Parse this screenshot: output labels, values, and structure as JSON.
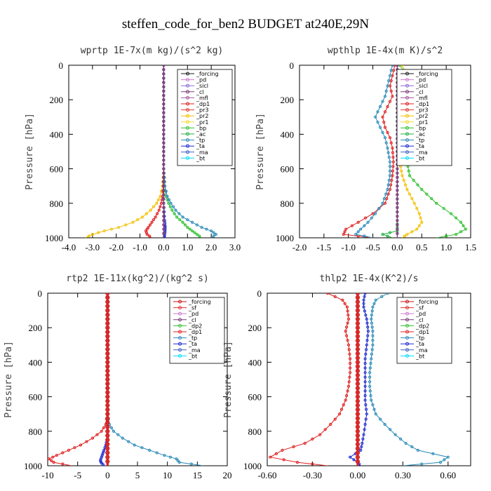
{
  "page": {
    "title": "steffen_code_for_ben2  BUDGET at240E,29N"
  },
  "colors": {
    "forcing": "#1a1a1a",
    "pd": "#d07ad0",
    "sicl": "#8a6ad8",
    "cl": "#7a3a7a",
    "mfl": "#a05a9a",
    "dp1": "#e02020",
    "pr3": "#e03a2a",
    "pr2": "#f3c000",
    "pr1": "#f3dc30",
    "bp": "#30c030",
    "ac": "#20b040",
    "tp": "#2a8ab8",
    "ta": "#1e2ad0",
    "ma": "#4060c0",
    "bt": "#00dcff",
    "sf": "#e03030",
    "dp2": "#30c030",
    "red_line": "#cc1111"
  },
  "chart_data": [
    {
      "type": "line",
      "title": "wprtp  1E-7x(m kg)/(s^2 kg)",
      "ylabel": "Pressure [hPa]",
      "xlim": [
        -4.0,
        3.0
      ],
      "ylim": [
        1000,
        0
      ],
      "xticks": [
        "-4.0",
        "-3.0",
        "-2.0",
        "-1.0",
        "0.0",
        "1.0",
        "2.0",
        "3.0"
      ],
      "yticks": [
        "0",
        "200",
        "400",
        "600",
        "800",
        "1000"
      ],
      "legend": [
        "_forcing",
        "_pd",
        "_sicl",
        "_cl",
        "_mfl",
        "_dp1",
        "_pr3",
        "_pr2",
        "_pr1",
        "_bp",
        "_ac",
        "_tp",
        "_ta",
        "_ma",
        "_bt"
      ],
      "series": [
        {
          "name": "_pr2",
          "color_key": "pr2",
          "x": [
            0,
            0,
            0,
            0,
            -0.05,
            -0.15,
            -0.3,
            -0.55,
            -0.9,
            -1.3,
            -1.9,
            -2.5,
            -3.0,
            -3.3
          ],
          "y": [
            0,
            300,
            500,
            600,
            700,
            760,
            800,
            840,
            880,
            910,
            940,
            960,
            980,
            1000
          ]
        },
        {
          "name": "_dp1",
          "color_key": "dp1",
          "x": [
            0,
            0,
            -0.02,
            -0.05,
            -0.1,
            -0.2,
            -0.35,
            -0.5,
            -0.65,
            -0.75,
            -0.7,
            -0.5
          ],
          "y": [
            0,
            600,
            700,
            760,
            800,
            840,
            880,
            910,
            940,
            960,
            980,
            1000
          ]
        },
        {
          "name": "_bp",
          "color_key": "bp",
          "x": [
            0,
            0,
            0.05,
            0.1,
            0.2,
            0.35,
            0.55,
            0.8,
            1.0,
            1.2,
            1.4,
            1.6
          ],
          "y": [
            0,
            600,
            700,
            760,
            800,
            840,
            880,
            910,
            940,
            960,
            980,
            1000
          ]
        },
        {
          "name": "_tp",
          "color_key": "tp",
          "x": [
            0,
            0,
            0.05,
            0.15,
            0.3,
            0.5,
            0.8,
            1.2,
            1.6,
            2.0,
            2.2,
            2.0
          ],
          "y": [
            0,
            600,
            700,
            760,
            800,
            840,
            880,
            910,
            940,
            960,
            980,
            1000
          ]
        },
        {
          "name": "_ta",
          "color_key": "ta",
          "x": [
            0,
            0,
            0,
            0.02,
            0.04,
            0.06,
            0.06,
            0.05,
            0.03,
            0.02
          ],
          "y": [
            0,
            700,
            800,
            850,
            900,
            930,
            950,
            970,
            990,
            1000
          ]
        },
        {
          "name": "_forcing",
          "color_key": "forcing",
          "x": [
            0,
            0
          ],
          "y": [
            0,
            1000
          ]
        },
        {
          "name": "_pd",
          "color_key": "pd",
          "x": [
            0,
            0
          ],
          "y": [
            0,
            1000
          ]
        },
        {
          "name": "_cl",
          "color_key": "cl",
          "x": [
            0,
            0
          ],
          "y": [
            0,
            1000
          ]
        }
      ]
    },
    {
      "type": "line",
      "title": "wpthlp  1E-4x(m K)/s^2",
      "ylabel": "Pressure [hPa]",
      "xlim": [
        -2.0,
        1.5
      ],
      "ylim": [
        1000,
        0
      ],
      "xticks": [
        "-2.0",
        "-1.5",
        "-1.0",
        "-0.5",
        "0.0",
        "0.5",
        "1.0",
        "1.5"
      ],
      "yticks": [
        "0",
        "200",
        "400",
        "600",
        "800",
        "1000"
      ],
      "legend": [
        "_forcing",
        "_pd",
        "_sicl",
        "_cl",
        "_mfl",
        "_dp1",
        "_pr3",
        "_pr2",
        "_pr1",
        "_bp",
        "_ac",
        "_tp",
        "_ta",
        "_ma",
        "_bt"
      ],
      "series": [
        {
          "name": "_bp",
          "color_key": "bp",
          "x": [
            0.05,
            0.2,
            0.3,
            0.25,
            0.3,
            0.45,
            0.5,
            0.45,
            0.3,
            0.2,
            0.25,
            0.5,
            0.8,
            1.1,
            1.3,
            1.4,
            1.2,
            0.8
          ],
          "y": [
            0,
            60,
            120,
            180,
            240,
            300,
            360,
            420,
            480,
            560,
            640,
            720,
            800,
            860,
            910,
            950,
            980,
            1000
          ]
        },
        {
          "name": "_pr2",
          "color_key": "pr2",
          "x": [
            0.1,
            0.2,
            0.25,
            0.2,
            0.3,
            0.35,
            0.3,
            0.2,
            0.1,
            0.05,
            0.1,
            0.2,
            0.35,
            0.45,
            0.5,
            0.4,
            0.2,
            0.1
          ],
          "y": [
            0,
            60,
            120,
            180,
            240,
            300,
            360,
            420,
            480,
            560,
            640,
            720,
            800,
            860,
            910,
            950,
            980,
            1000
          ]
        },
        {
          "name": "_dp1",
          "color_key": "dp1",
          "x": [
            -0.05,
            -0.1,
            -0.15,
            -0.1,
            -0.2,
            -0.3,
            -0.25,
            -0.15,
            -0.1,
            -0.08,
            -0.1,
            -0.15,
            -0.25,
            -0.5,
            -0.8,
            -1.05,
            -1.1,
            -0.5
          ],
          "y": [
            0,
            60,
            120,
            180,
            240,
            300,
            360,
            420,
            480,
            560,
            640,
            720,
            800,
            860,
            910,
            950,
            980,
            1000
          ]
        },
        {
          "name": "_tp",
          "color_key": "tp",
          "x": [
            -0.1,
            -0.15,
            -0.2,
            -0.25,
            -0.35,
            -0.45,
            -0.35,
            -0.25,
            -0.2,
            -0.15,
            -0.15,
            -0.2,
            -0.3,
            -0.45,
            -0.6,
            -0.75,
            -0.85,
            -0.5
          ],
          "y": [
            0,
            60,
            120,
            180,
            240,
            300,
            360,
            420,
            480,
            560,
            640,
            720,
            800,
            860,
            910,
            950,
            980,
            1000
          ]
        },
        {
          "name": "_ac",
          "color_key": "ac",
          "x": [
            0,
            0,
            0,
            0,
            0,
            0,
            0,
            0,
            -0.3,
            -0.1
          ],
          "y": [
            0,
            200,
            400,
            600,
            800,
            900,
            940,
            960,
            980,
            1000
          ]
        },
        {
          "name": "_forcing",
          "color_key": "forcing",
          "x": [
            0,
            0
          ],
          "y": [
            0,
            1000
          ]
        },
        {
          "name": "_pd",
          "color_key": "pd",
          "x": [
            0,
            0
          ],
          "y": [
            0,
            1000
          ]
        },
        {
          "name": "_cl",
          "color_key": "cl",
          "x": [
            0,
            0
          ],
          "y": [
            0,
            1000
          ]
        }
      ]
    },
    {
      "type": "line",
      "title": "rtp2  1E-11x(kg^2)/(kg^2 s)",
      "ylabel": "Pressure [hPa]",
      "xlim": [
        -10,
        20
      ],
      "ylim": [
        1000,
        0
      ],
      "xticks": [
        "-10",
        "-5",
        "0",
        "5",
        "10",
        "15",
        "20"
      ],
      "yticks": [
        "0",
        "200",
        "400",
        "600",
        "800",
        "1000"
      ],
      "legend": [
        "_forcing",
        "_sf",
        "_pd",
        "_cl",
        "_dp2",
        "_dp1",
        "_tp",
        "_ta",
        "_ma",
        "_bt"
      ],
      "series": [
        {
          "name": "_dp1",
          "color_key": "dp1",
          "x": [
            0,
            0,
            -0.3,
            -1.0,
            -2.5,
            -4.5,
            -6.5,
            -8.5,
            -9.8,
            -9.0,
            -6.0
          ],
          "y": [
            0,
            700,
            760,
            800,
            840,
            880,
            910,
            940,
            960,
            980,
            1000
          ]
        },
        {
          "name": "_tp",
          "color_key": "tp",
          "x": [
            0,
            0,
            0.3,
            1.0,
            2.5,
            4.5,
            7.0,
            9.5,
            11.5,
            12.0,
            16.0
          ],
          "y": [
            0,
            700,
            760,
            800,
            840,
            880,
            910,
            940,
            960,
            980,
            1000
          ]
        },
        {
          "name": "_ta",
          "color_key": "ta",
          "x": [
            0,
            0,
            -0.1,
            -0.3,
            -0.6,
            -0.8,
            -1.0,
            -1.2,
            -1.0,
            -0.5
          ],
          "y": [
            0,
            800,
            850,
            880,
            910,
            930,
            950,
            970,
            985,
            1000
          ]
        },
        {
          "name": "_forcing",
          "color_key": "red_line",
          "x": [
            0,
            0
          ],
          "y": [
            0,
            1000
          ]
        },
        {
          "name": "_sf",
          "color_key": "sf",
          "x": [
            0,
            0
          ],
          "y": [
            0,
            1000
          ]
        }
      ]
    },
    {
      "type": "line",
      "title": "thlp2  1E-4x(K^2)/s",
      "ylabel": "Pressure [hPa]",
      "xlim": [
        -0.6,
        0.75
      ],
      "ylim": [
        1000,
        0
      ],
      "xticks": [
        "-0.60",
        "-0.30",
        "0.00",
        "0.30",
        "0.60"
      ],
      "yticks": [
        "0",
        "200",
        "400",
        "600",
        "800",
        "1000"
      ],
      "legend": [
        "_forcing",
        "_sf",
        "_pd",
        "_cl",
        "_dp2",
        "_dp1",
        "_tp",
        "_ta",
        "_ma",
        "_bt"
      ],
      "series": [
        {
          "name": "_dp1",
          "color_key": "dp1",
          "x": [
            -0.2,
            -0.1,
            -0.07,
            -0.06,
            -0.08,
            -0.06,
            -0.05,
            -0.05,
            -0.06,
            -0.08,
            -0.12,
            -0.18,
            -0.25,
            -0.35,
            -0.5,
            -0.58,
            -0.4,
            -0.2
          ],
          "y": [
            0,
            40,
            80,
            150,
            220,
            300,
            380,
            460,
            540,
            620,
            700,
            760,
            820,
            870,
            910,
            950,
            980,
            1000
          ]
        },
        {
          "name": "_tp",
          "color_key": "tp",
          "x": [
            0.2,
            0.12,
            0.1,
            0.09,
            0.1,
            0.1,
            0.09,
            0.08,
            0.08,
            0.09,
            0.12,
            0.18,
            0.25,
            0.32,
            0.4,
            0.6,
            0.55,
            0.3
          ],
          "y": [
            0,
            40,
            80,
            150,
            220,
            300,
            380,
            460,
            540,
            620,
            700,
            760,
            820,
            870,
            910,
            950,
            980,
            1000
          ]
        },
        {
          "name": "_ta",
          "color_key": "ta",
          "x": [
            0.05,
            0.04,
            0.04,
            0.06,
            0.07,
            0.06,
            0.05,
            0.05,
            0.05,
            0.05,
            0.06,
            0.05,
            0.04,
            0.03,
            0.02,
            -0.05,
            0.0,
            0.02
          ],
          "y": [
            0,
            40,
            80,
            150,
            220,
            300,
            380,
            460,
            540,
            620,
            700,
            760,
            820,
            870,
            910,
            950,
            980,
            1000
          ]
        },
        {
          "name": "_forcing",
          "color_key": "red_line",
          "x": [
            0,
            0
          ],
          "y": [
            0,
            1000
          ]
        },
        {
          "name": "_sf",
          "color_key": "sf",
          "x": [
            0,
            0
          ],
          "y": [
            0,
            1000
          ]
        }
      ]
    }
  ]
}
